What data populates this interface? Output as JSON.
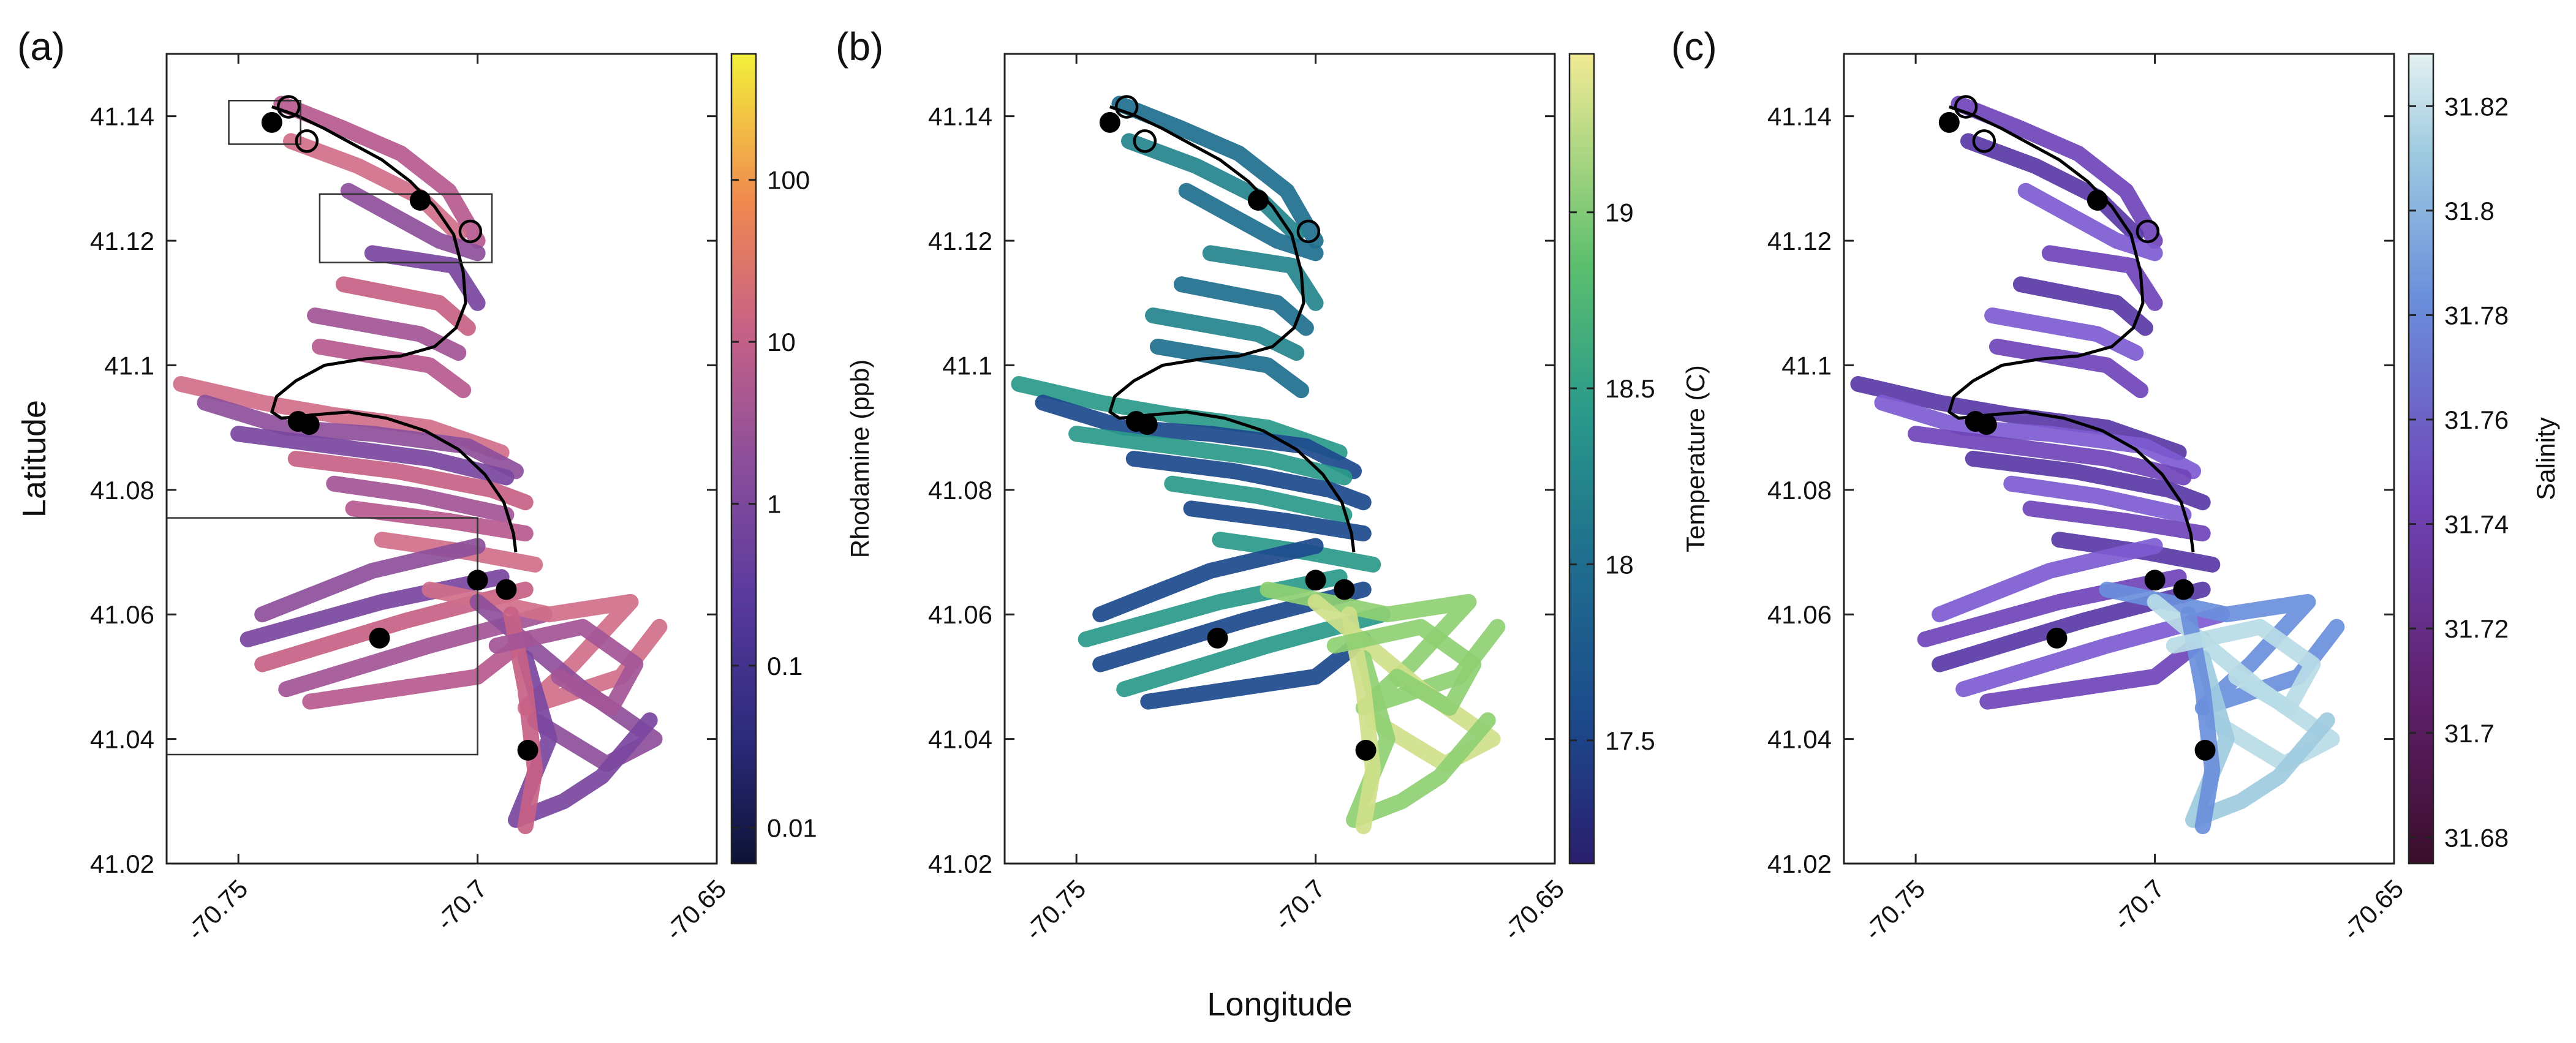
{
  "figure": {
    "xlabel": "Longitude",
    "ylabel": "Latitude"
  },
  "chart_data": [
    {
      "type": "scatter",
      "panel_label": "(a)",
      "xlim": [
        -70.765,
        -70.65
      ],
      "ylim": [
        41.02,
        41.15
      ],
      "xticks": [
        -70.75,
        -70.7,
        -70.65
      ],
      "xtick_labels": [
        "-70.75",
        "-70.7",
        "-70.65"
      ],
      "yticks": [
        41.02,
        41.04,
        41.06,
        41.08,
        41.1,
        41.12,
        41.14
      ],
      "ytick_labels": [
        "41.02",
        "41.04",
        "41.06",
        "41.08",
        "41.1",
        "41.12",
        "41.14"
      ],
      "colorbar": {
        "label": "Rhodamine (ppb)",
        "scale": "log",
        "colormap": "plasma-like (dark navy → purple → orange → yellow)",
        "range": [
          0.006,
          600
        ],
        "ticks": [
          0.01,
          0.1,
          1,
          10,
          100
        ],
        "tick_labels": [
          "0.01",
          "0.1",
          "1",
          "10",
          "100"
        ]
      },
      "boxes": [
        {
          "x0": -70.752,
          "x1": -70.737,
          "y0": 41.1355,
          "y1": 41.1425
        },
        {
          "x0": -70.733,
          "x1": -70.697,
          "y0": 41.1165,
          "y1": 41.1275
        },
        {
          "x0": -70.765,
          "x1": -70.7,
          "y0": 41.0375,
          "y1": 41.0755
        }
      ]
    },
    {
      "type": "scatter",
      "panel_label": "(b)",
      "xlim": [
        -70.765,
        -70.65
      ],
      "ylim": [
        41.02,
        41.15
      ],
      "xticks": [
        -70.75,
        -70.7,
        -70.65
      ],
      "xtick_labels": [
        "-70.75",
        "-70.7",
        "-70.65"
      ],
      "yticks": [
        41.02,
        41.04,
        41.06,
        41.08,
        41.1,
        41.12,
        41.14
      ],
      "ytick_labels": [
        "41.02",
        "41.04",
        "41.06",
        "41.08",
        "41.1",
        "41.12",
        "41.14"
      ],
      "colorbar": {
        "label": "Temperature (C)",
        "scale": "linear",
        "colormap": "haline-like (navy → blue → teal → green → yellow)",
        "range": [
          17.15,
          19.45
        ],
        "ticks": [
          17.5,
          18,
          18.5,
          19
        ],
        "tick_labels": [
          "17.5",
          "18",
          "18.5",
          "19"
        ]
      },
      "boxes": []
    },
    {
      "type": "scatter",
      "panel_label": "(c)",
      "xlim": [
        -70.765,
        -70.65
      ],
      "ylim": [
        41.02,
        41.15
      ],
      "xticks": [
        -70.75,
        -70.7,
        -70.65
      ],
      "xtick_labels": [
        "-70.75",
        "-70.7",
        "-70.65"
      ],
      "yticks": [
        41.02,
        41.04,
        41.06,
        41.08,
        41.1,
        41.12,
        41.14
      ],
      "ytick_labels": [
        "41.02",
        "41.04",
        "41.06",
        "41.08",
        "41.1",
        "41.12",
        "41.14"
      ],
      "colorbar": {
        "label": "Salinity",
        "scale": "linear",
        "colormap": "dense-like (dark maroon → purple → blue → pale cyan)",
        "range": [
          31.675,
          31.83
        ],
        "ticks": [
          31.68,
          31.7,
          31.72,
          31.74,
          31.76,
          31.78,
          31.8,
          31.82
        ],
        "tick_labels": [
          "31.68",
          "31.7",
          "31.72",
          "31.74",
          "31.76",
          "31.78",
          "31.8",
          "31.82"
        ]
      },
      "boxes": []
    }
  ],
  "shared_track": {
    "description": "Survey track (colored lines) with a black reference path, filled station markers and open circle markers; identical in all panels",
    "reference_path": [
      [
        -70.743,
        41.1415
      ],
      [
        -70.738,
        41.1402
      ],
      [
        -70.732,
        41.138
      ],
      [
        -70.726,
        41.1355
      ],
      [
        -70.72,
        41.133
      ],
      [
        -70.714,
        41.1295
      ],
      [
        -70.709,
        41.1255
      ],
      [
        -70.705,
        41.121
      ],
      [
        -70.703,
        41.115
      ],
      [
        -70.7025,
        41.11
      ],
      [
        -70.7045,
        41.106
      ],
      [
        -70.709,
        41.103
      ],
      [
        -70.716,
        41.1015
      ],
      [
        -70.724,
        41.101
      ],
      [
        -70.732,
        41.1
      ],
      [
        -70.738,
        41.0975
      ],
      [
        -70.742,
        41.095
      ],
      [
        -70.743,
        41.0925
      ],
      [
        -70.741,
        41.0915
      ],
      [
        -70.735,
        41.092
      ],
      [
        -70.727,
        41.0925
      ],
      [
        -70.719,
        41.0915
      ],
      [
        -70.711,
        41.0895
      ],
      [
        -70.704,
        41.0865
      ],
      [
        -70.6985,
        41.0825
      ],
      [
        -70.6945,
        41.078
      ],
      [
        -70.6925,
        41.073
      ],
      [
        -70.692,
        41.07
      ]
    ],
    "track_lines": [
      [
        [
          -70.741,
          41.142
        ],
        [
          -70.728,
          41.138
        ],
        [
          -70.716,
          41.134
        ],
        [
          -70.706,
          41.128
        ],
        [
          -70.7,
          41.12
        ]
      ],
      [
        [
          -70.739,
          41.136
        ],
        [
          -70.725,
          41.132
        ],
        [
          -70.712,
          41.127
        ],
        [
          -70.704,
          41.121
        ]
      ],
      [
        [
          -70.727,
          41.128
        ],
        [
          -70.708,
          41.12
        ],
        [
          -70.7,
          41.118
        ]
      ],
      [
        [
          -70.722,
          41.118
        ],
        [
          -70.705,
          41.116
        ],
        [
          -70.7,
          41.11
        ]
      ],
      [
        [
          -70.728,
          41.113
        ],
        [
          -70.708,
          41.11
        ],
        [
          -70.702,
          41.106
        ]
      ],
      [
        [
          -70.734,
          41.108
        ],
        [
          -70.712,
          41.105
        ],
        [
          -70.704,
          41.102
        ]
      ],
      [
        [
          -70.733,
          41.103
        ],
        [
          -70.71,
          41.1
        ],
        [
          -70.703,
          41.096
        ]
      ],
      [
        [
          -70.762,
          41.097
        ],
        [
          -70.745,
          41.094
        ],
        [
          -70.73,
          41.092
        ],
        [
          -70.71,
          41.09
        ],
        [
          -70.695,
          41.086
        ]
      ],
      [
        [
          -70.757,
          41.094
        ],
        [
          -70.74,
          41.09
        ],
        [
          -70.722,
          41.089
        ],
        [
          -70.702,
          41.087
        ],
        [
          -70.692,
          41.083
        ]
      ],
      [
        [
          -70.75,
          41.089
        ],
        [
          -70.73,
          41.087
        ],
        [
          -70.71,
          41.085
        ],
        [
          -70.694,
          41.082
        ]
      ],
      [
        [
          -70.738,
          41.085
        ],
        [
          -70.717,
          41.083
        ],
        [
          -70.697,
          41.08
        ],
        [
          -70.69,
          41.078
        ]
      ],
      [
        [
          -70.73,
          41.081
        ],
        [
          -70.712,
          41.079
        ],
        [
          -70.694,
          41.076
        ]
      ],
      [
        [
          -70.726,
          41.077
        ],
        [
          -70.706,
          41.075
        ],
        [
          -70.69,
          41.073
        ]
      ],
      [
        [
          -70.72,
          41.072
        ],
        [
          -70.702,
          41.07
        ],
        [
          -70.688,
          41.068
        ]
      ],
      [
        [
          -70.745,
          41.06
        ],
        [
          -70.722,
          41.067
        ],
        [
          -70.7,
          41.071
        ]
      ],
      [
        [
          -70.748,
          41.056
        ],
        [
          -70.72,
          41.062
        ],
        [
          -70.695,
          41.066
        ]
      ],
      [
        [
          -70.745,
          41.052
        ],
        [
          -70.715,
          41.059
        ],
        [
          -70.69,
          41.064
        ]
      ],
      [
        [
          -70.74,
          41.048
        ],
        [
          -70.71,
          41.055
        ],
        [
          -70.686,
          41.06
        ]
      ],
      [
        [
          -70.735,
          41.046
        ],
        [
          -70.7,
          41.05
        ],
        [
          -70.69,
          41.056
        ]
      ],
      [
        [
          -70.71,
          41.064
        ],
        [
          -70.685,
          41.06
        ],
        [
          -70.668,
          41.062
        ],
        [
          -70.68,
          41.052
        ],
        [
          -70.69,
          41.045
        ],
        [
          -70.67,
          41.05
        ],
        [
          -70.662,
          41.058
        ]
      ],
      [
        [
          -70.7,
          41.062
        ],
        [
          -70.678,
          41.048
        ],
        [
          -70.663,
          41.04
        ],
        [
          -70.673,
          41.036
        ],
        [
          -70.688,
          41.043
        ]
      ],
      [
        [
          -70.69,
          41.053
        ],
        [
          -70.685,
          41.04
        ],
        [
          -70.692,
          41.027
        ],
        [
          -70.682,
          41.03
        ],
        [
          -70.674,
          41.034
        ],
        [
          -70.664,
          41.043
        ]
      ],
      [
        [
          -70.693,
          41.06
        ],
        [
          -70.69,
          41.048
        ],
        [
          -70.688,
          41.035
        ],
        [
          -70.69,
          41.026
        ]
      ],
      [
        [
          -70.696,
          41.055
        ],
        [
          -70.678,
          41.058
        ],
        [
          -70.667,
          41.052
        ],
        [
          -70.672,
          41.045
        ],
        [
          -70.683,
          41.05
        ]
      ]
    ],
    "filled_markers": [
      [
        -70.743,
        41.139
      ],
      [
        -70.712,
        41.1265
      ],
      [
        -70.7375,
        41.091
      ],
      [
        -70.7352,
        41.0905
      ],
      [
        -70.7,
        41.0655
      ],
      [
        -70.694,
        41.064
      ],
      [
        -70.7205,
        41.0562
      ],
      [
        -70.6895,
        41.0382
      ]
    ],
    "open_markers": [
      [
        -70.7395,
        41.1415
      ],
      [
        -70.7357,
        41.136
      ],
      [
        -70.7015,
        41.1215
      ]
    ]
  }
}
